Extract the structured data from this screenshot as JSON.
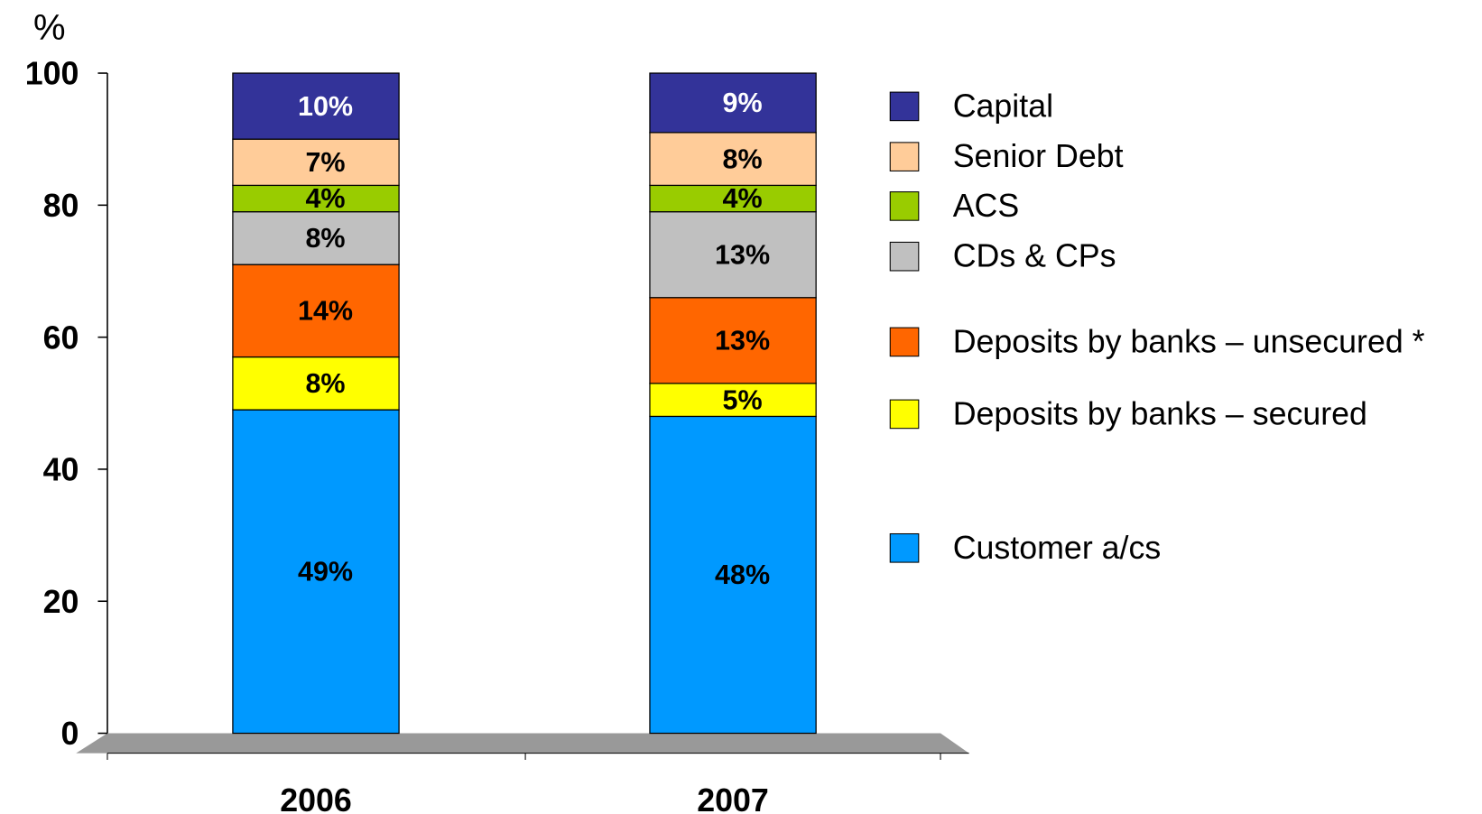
{
  "chart_data": {
    "type": "stacked_bar",
    "y_label": "%",
    "categories": [
      "2006",
      "2007"
    ],
    "ylim": [
      0,
      100
    ],
    "yticks": [
      0,
      20,
      40,
      60,
      80,
      100
    ],
    "series": [
      {
        "name": "Customer a/cs",
        "color": "#0099ff",
        "values": [
          49,
          48
        ],
        "value_labels": [
          "49%",
          "48%"
        ]
      },
      {
        "name": "Deposits by banks – secured",
        "color": "#ffff00",
        "values": [
          8,
          5
        ],
        "value_labels": [
          "8%",
          "5%"
        ]
      },
      {
        "name": "Deposits by banks – unsecured *",
        "color": "#ff6600",
        "values": [
          14,
          13
        ],
        "value_labels": [
          "14%",
          "13%"
        ]
      },
      {
        "name": "CDs & CPs",
        "color": "#c0c0c0",
        "values": [
          8,
          13
        ],
        "value_labels": [
          "8%",
          "13%"
        ]
      },
      {
        "name": "ACS",
        "color": "#99cc00",
        "values": [
          4,
          4
        ],
        "value_labels": [
          "4%",
          "4%"
        ]
      },
      {
        "name": "Senior Debt",
        "color": "#ffcc99",
        "values": [
          7,
          8
        ],
        "value_labels": [
          "7%",
          "8%"
        ]
      },
      {
        "name": "Capital",
        "color": "#333399",
        "values": [
          10,
          9
        ],
        "value_labels": [
          "10%",
          "9%"
        ]
      }
    ]
  }
}
